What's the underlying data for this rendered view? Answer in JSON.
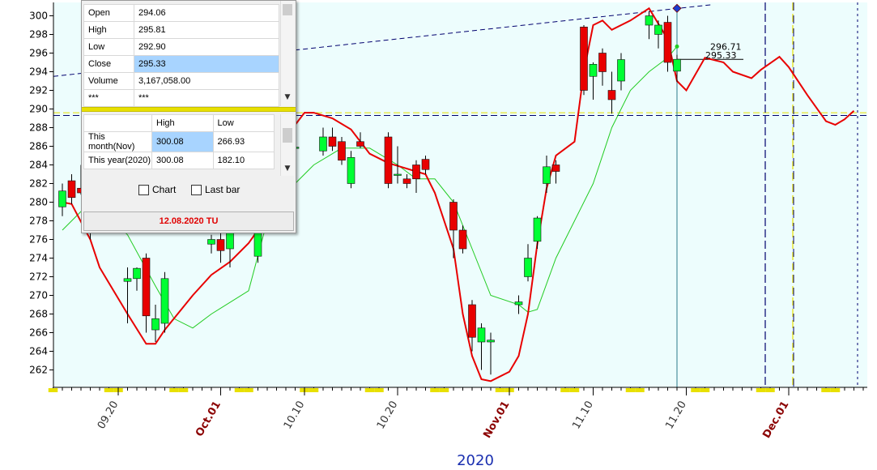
{
  "chart_data": {
    "type": "candlestick",
    "year_label": "2020",
    "ylim": [
      260.5,
      301.5
    ],
    "y_ticks": [
      262,
      264,
      266,
      268,
      270,
      272,
      274,
      276,
      278,
      280,
      282,
      284,
      286,
      288,
      290,
      292,
      294,
      296,
      298,
      300
    ],
    "x_ticks": [
      {
        "label": "09.20",
        "date": "2020-09-20",
        "month": false
      },
      {
        "label": "Oct.01",
        "date": "2020-10-01",
        "month": true
      },
      {
        "label": "10.10",
        "date": "2020-10-10",
        "month": false
      },
      {
        "label": "10.20",
        "date": "2020-10-20",
        "month": false
      },
      {
        "label": "Nov.01",
        "date": "2020-11-01",
        "month": true
      },
      {
        "label": "11.10",
        "date": "2020-11-10",
        "month": false
      },
      {
        "label": "11.20",
        "date": "2020-11-20",
        "month": false
      },
      {
        "label": "Dec.01",
        "date": "2020-12-01",
        "month": true
      }
    ],
    "candles": [
      {
        "date": "2020-09-14",
        "open": 279.5,
        "high": 282.0,
        "low": 278.5,
        "close": 281.2
      },
      {
        "date": "2020-09-15",
        "open": 282.3,
        "high": 283.0,
        "low": 279.8,
        "close": 280.5
      },
      {
        "date": "2020-09-16",
        "open": 281.5,
        "high": 284.0,
        "low": 280.8,
        "close": 281.0
      },
      {
        "date": "2020-09-17",
        "open": 278.0,
        "high": 279.0,
        "low": 276.0,
        "close": 276.8
      },
      {
        "date": "2020-09-21",
        "open": 271.5,
        "high": 273.0,
        "low": 267.0,
        "close": 271.8
      },
      {
        "date": "2020-09-22",
        "open": 271.8,
        "high": 273.0,
        "low": 270.5,
        "close": 272.9
      },
      {
        "date": "2020-09-23",
        "open": 274.0,
        "high": 274.5,
        "low": 266.0,
        "close": 267.8
      },
      {
        "date": "2020-09-24",
        "open": 266.3,
        "high": 269.0,
        "low": 265.0,
        "close": 267.5
      },
      {
        "date": "2020-09-25",
        "open": 267.0,
        "high": 272.5,
        "low": 266.0,
        "close": 271.8
      },
      {
        "date": "2020-09-30",
        "open": 275.5,
        "high": 276.5,
        "low": 274.5,
        "close": 276.0
      },
      {
        "date": "2020-10-01",
        "open": 276.0,
        "high": 277.0,
        "low": 273.5,
        "close": 274.8
      },
      {
        "date": "2020-10-02",
        "open": 275.0,
        "high": 278.0,
        "low": 273.0,
        "close": 277.0
      },
      {
        "date": "2020-10-05",
        "open": 274.2,
        "high": 277.5,
        "low": 273.5,
        "close": 277.0
      },
      {
        "date": "2020-10-09",
        "open": 285.8,
        "high": 286.5,
        "low": 283.0,
        "close": 285.9
      },
      {
        "date": "2020-10-12",
        "open": 285.5,
        "high": 288.0,
        "low": 285.0,
        "close": 287.0
      },
      {
        "date": "2020-10-13",
        "open": 287.0,
        "high": 288.0,
        "low": 285.5,
        "close": 286.0
      },
      {
        "date": "2020-10-14",
        "open": 286.5,
        "high": 287.0,
        "low": 284.0,
        "close": 284.5
      },
      {
        "date": "2020-10-15",
        "open": 282.0,
        "high": 285.5,
        "low": 281.5,
        "close": 284.8
      },
      {
        "date": "2020-10-16",
        "open": 286.5,
        "high": 287.5,
        "low": 285.8,
        "close": 286.0
      },
      {
        "date": "2020-10-19",
        "open": 287.0,
        "high": 287.5,
        "low": 281.5,
        "close": 282.0
      },
      {
        "date": "2020-10-20",
        "open": 283.0,
        "high": 286.0,
        "low": 282.0,
        "close": 283.0
      },
      {
        "date": "2020-10-21",
        "open": 282.5,
        "high": 283.0,
        "low": 281.5,
        "close": 282.0
      },
      {
        "date": "2020-10-22",
        "open": 284.0,
        "high": 284.5,
        "low": 281.0,
        "close": 282.5
      },
      {
        "date": "2020-10-23",
        "open": 284.6,
        "high": 285.0,
        "low": 283.0,
        "close": 283.5
      },
      {
        "date": "2020-10-26",
        "open": 280.0,
        "high": 280.3,
        "low": 274.0,
        "close": 277.0
      },
      {
        "date": "2020-10-27",
        "open": 277.0,
        "high": 277.5,
        "low": 274.5,
        "close": 275.0
      },
      {
        "date": "2020-10-28",
        "open": 269.0,
        "high": 269.5,
        "low": 264.0,
        "close": 265.5
      },
      {
        "date": "2020-10-29",
        "open": 265.0,
        "high": 267.0,
        "low": 262.0,
        "close": 266.5
      },
      {
        "date": "2020-10-30",
        "open": 265.0,
        "high": 266.0,
        "low": 261.5,
        "close": 265.2
      },
      {
        "date": "2020-11-02",
        "open": 269.0,
        "high": 270.0,
        "low": 268.0,
        "close": 269.3
      },
      {
        "date": "2020-11-03",
        "open": 272.0,
        "high": 275.5,
        "low": 271.5,
        "close": 274.0
      },
      {
        "date": "2020-11-04",
        "open": 275.8,
        "high": 278.5,
        "low": 275.0,
        "close": 278.3
      },
      {
        "date": "2020-11-05",
        "open": 282.0,
        "high": 285.0,
        "low": 281.0,
        "close": 283.8
      },
      {
        "date": "2020-11-06",
        "open": 284.0,
        "high": 284.5,
        "low": 282.0,
        "close": 283.3
      },
      {
        "date": "2020-11-09",
        "open": 298.8,
        "high": 299.0,
        "low": 291.5,
        "close": 292.0
      },
      {
        "date": "2020-11-10",
        "open": 293.5,
        "high": 295.0,
        "low": 291.0,
        "close": 294.8
      },
      {
        "date": "2020-11-11",
        "open": 296.0,
        "high": 296.5,
        "low": 292.5,
        "close": 294.0
      },
      {
        "date": "2020-11-12",
        "open": 292.0,
        "high": 294.0,
        "low": 289.5,
        "close": 291.0
      },
      {
        "date": "2020-11-13",
        "open": 293.0,
        "high": 296.0,
        "low": 292.0,
        "close": 295.3
      },
      {
        "date": "2020-11-16",
        "open": 299.0,
        "high": 300.5,
        "low": 297.5,
        "close": 300.0
      },
      {
        "date": "2020-11-17",
        "open": 298.0,
        "high": 299.5,
        "low": 296.5,
        "close": 299.0
      },
      {
        "date": "2020-11-18",
        "open": 299.3,
        "high": 300.0,
        "low": 294.0,
        "close": 295.0
      },
      {
        "date": "2020-11-19",
        "open": 294.06,
        "high": 295.81,
        "low": 292.9,
        "close": 295.33
      }
    ],
    "red_line": [
      [
        "2020-09-14",
        280.0
      ],
      [
        "2020-09-15",
        279.8
      ],
      [
        "2020-09-17",
        276.0
      ],
      [
        "2020-09-18",
        273.0
      ],
      [
        "2020-09-21",
        268.0
      ],
      [
        "2020-09-23",
        264.8
      ],
      [
        "2020-09-24",
        264.8
      ],
      [
        "2020-09-25",
        266.3
      ],
      [
        "2020-09-28",
        270.0
      ],
      [
        "2020-09-30",
        272.2
      ],
      [
        "2020-10-02",
        273.6
      ],
      [
        "2020-10-04",
        275.6
      ],
      [
        "2020-10-05",
        277.0
      ],
      [
        "2020-10-06",
        281.0
      ],
      [
        "2020-10-08",
        287.0
      ],
      [
        "2020-10-10",
        289.6
      ],
      [
        "2020-10-11",
        289.6
      ],
      [
        "2020-10-13",
        289.0
      ],
      [
        "2020-10-15",
        287.8
      ],
      [
        "2020-10-17",
        285.2
      ],
      [
        "2020-10-19",
        284.2
      ],
      [
        "2020-10-20",
        283.9
      ],
      [
        "2020-10-23",
        283.0
      ],
      [
        "2020-10-24",
        281.0
      ],
      [
        "2020-10-26",
        275.0
      ],
      [
        "2020-10-27",
        268.0
      ],
      [
        "2020-10-28",
        263.5
      ],
      [
        "2020-10-29",
        261.0
      ],
      [
        "2020-10-30",
        260.8
      ],
      [
        "2020-11-01",
        261.8
      ],
      [
        "2020-11-02",
        263.5
      ],
      [
        "2020-11-03",
        268.0
      ],
      [
        "2020-11-04",
        275.5
      ],
      [
        "2020-11-05",
        281.5
      ],
      [
        "2020-11-06",
        285.0
      ],
      [
        "2020-11-08",
        286.5
      ],
      [
        "2020-11-09",
        294.0
      ],
      [
        "2020-11-10",
        299.0
      ],
      [
        "2020-11-11",
        299.5
      ],
      [
        "2020-11-12",
        298.5
      ],
      [
        "2020-11-14",
        299.5
      ],
      [
        "2020-11-16",
        300.8
      ],
      [
        "2020-11-18",
        297.5
      ],
      [
        "2020-11-19",
        293.0
      ],
      [
        "2020-11-20",
        292.0
      ],
      [
        "2020-11-22",
        295.5
      ],
      [
        "2020-11-24",
        295.0
      ],
      [
        "2020-11-25",
        294.0
      ],
      [
        "2020-11-27",
        293.3
      ],
      [
        "2020-11-28",
        294.2
      ],
      [
        "2020-11-30",
        295.6
      ],
      [
        "2020-12-01",
        294.5
      ],
      [
        "2020-12-03",
        291.5
      ],
      [
        "2020-12-05",
        288.7
      ],
      [
        "2020-12-06",
        288.3
      ],
      [
        "2020-12-07",
        288.9
      ],
      [
        "2020-12-08",
        289.8
      ]
    ],
    "green_line": [
      [
        "2020-09-14",
        277.0
      ],
      [
        "2020-09-16",
        279.0
      ],
      [
        "2020-09-18",
        279.5
      ],
      [
        "2020-09-21",
        276.5
      ],
      [
        "2020-09-24",
        271.0
      ],
      [
        "2020-09-26",
        267.5
      ],
      [
        "2020-09-28",
        266.5
      ],
      [
        "2020-09-30",
        268.0
      ],
      [
        "2020-10-04",
        270.5
      ],
      [
        "2020-10-06",
        278.0
      ],
      [
        "2020-10-09",
        282.0
      ],
      [
        "2020-10-11",
        284.0
      ],
      [
        "2020-10-14",
        285.8
      ],
      [
        "2020-10-17",
        285.8
      ],
      [
        "2020-10-20",
        284.0
      ],
      [
        "2020-10-22",
        282.5
      ],
      [
        "2020-10-24",
        282.5
      ],
      [
        "2020-10-26",
        280.0
      ],
      [
        "2020-10-28",
        275.0
      ],
      [
        "2020-10-30",
        270.0
      ],
      [
        "2020-11-02",
        269.0
      ],
      [
        "2020-11-03",
        268.2
      ],
      [
        "2020-11-04",
        268.5
      ],
      [
        "2020-11-06",
        274.0
      ],
      [
        "2020-11-08",
        278.0
      ],
      [
        "2020-11-10",
        282.0
      ],
      [
        "2020-11-12",
        288.0
      ],
      [
        "2020-11-14",
        292.0
      ],
      [
        "2020-11-16",
        294.0
      ],
      [
        "2020-11-18",
        295.5
      ],
      [
        "2020-11-19",
        296.71
      ]
    ],
    "annotations": {
      "value_labels": [
        "296.71",
        "295.33"
      ],
      "diamond": {
        "date": "2020-11-19",
        "value": 300.8
      }
    }
  },
  "panel": {
    "ohlc": [
      {
        "key": "Open",
        "value": "294.06"
      },
      {
        "key": "High",
        "value": "295.81"
      },
      {
        "key": "Low",
        "value": "292.90"
      },
      {
        "key": "Close",
        "value": "295.33"
      },
      {
        "key": "Volume",
        "value": "3,167,058.00"
      },
      {
        "key": "***",
        "value": "***"
      }
    ],
    "range_headers": [
      "High",
      "Low"
    ],
    "ranges": [
      {
        "label": "This month(Nov)",
        "high": "300.08",
        "low": "266.93"
      },
      {
        "label": "This year(2020)",
        "high": "300.08",
        "low": "182.10"
      }
    ],
    "chart_checkbox": "Chart",
    "lastbar_checkbox": "Last bar",
    "date_label": "12.08.2020 TU"
  },
  "colors": {
    "plot_bg": "#edfdfd",
    "up": "#00ff33",
    "down": "#e80000",
    "red_line": "#e80000",
    "green_line": "#22cc22",
    "trend": "#00006e"
  }
}
